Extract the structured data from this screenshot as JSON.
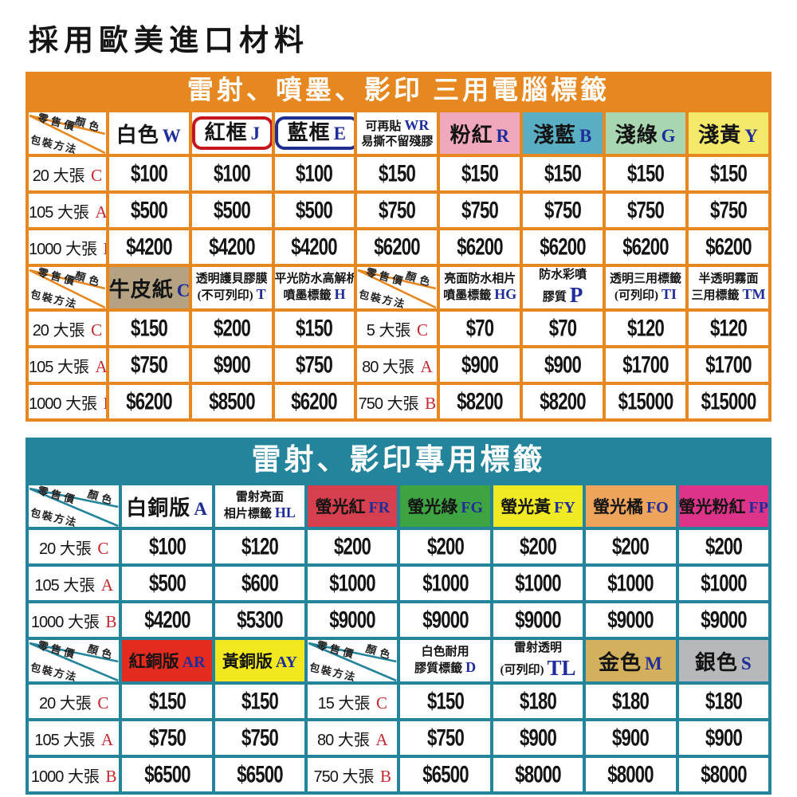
{
  "page_title": "採用歐美進口材料",
  "corner_labels": {
    "retail": "零售價",
    "color": "顏色",
    "packing": "包裝方法"
  },
  "tables": [
    {
      "title": "雷射、噴墨、影印 三用電腦標籤",
      "accent": "#e6871f",
      "rows": [
        {
          "kind": "header",
          "cells": [
            {
              "type": "corner"
            },
            {
              "type": "head",
              "size": "lg",
              "lines": [
                {
                  "t": "白色",
                  "c": "W"
                }
              ]
            },
            {
              "type": "head",
              "size": "lg",
              "frame": "#c4161c",
              "lines": [
                {
                  "t": "紅框",
                  "c": "J"
                }
              ]
            },
            {
              "type": "head",
              "size": "lg",
              "frame": "#202f8d",
              "lines": [
                {
                  "t": "藍框",
                  "c": "E"
                }
              ]
            },
            {
              "type": "head",
              "size": "sm",
              "lines": [
                {
                  "t": "可再貼",
                  "c": "WR"
                },
                {
                  "t": "易撕不留殘膠",
                  "c": ""
                }
              ]
            },
            {
              "type": "head",
              "size": "lg",
              "bg": "#f0a8bd",
              "lines": [
                {
                  "t": "粉紅",
                  "c": "R"
                }
              ]
            },
            {
              "type": "head",
              "size": "lg",
              "bg": "#5aaec3",
              "lines": [
                {
                  "t": "淺藍",
                  "c": "B"
                }
              ]
            },
            {
              "type": "head",
              "size": "lg",
              "bg": "#a8d6b1",
              "lines": [
                {
                  "t": "淺綠",
                  "c": "G"
                }
              ]
            },
            {
              "type": "head",
              "size": "lg",
              "bg": "#f4e96b",
              "lines": [
                {
                  "t": "淺黃",
                  "c": "Y"
                }
              ]
            }
          ]
        },
        {
          "kind": "data",
          "cells": [
            {
              "type": "label",
              "qty": "20",
              "unit": "大張",
              "code": "C"
            },
            {
              "type": "price",
              "v": "$100"
            },
            {
              "type": "price",
              "v": "$100"
            },
            {
              "type": "price",
              "v": "$100"
            },
            {
              "type": "price",
              "v": "$150"
            },
            {
              "type": "price",
              "v": "$150"
            },
            {
              "type": "price",
              "v": "$150"
            },
            {
              "type": "price",
              "v": "$150"
            },
            {
              "type": "price",
              "v": "$150"
            }
          ]
        },
        {
          "kind": "data",
          "cells": [
            {
              "type": "label",
              "qty": "105",
              "unit": "大張",
              "code": "A"
            },
            {
              "type": "price",
              "v": "$500"
            },
            {
              "type": "price",
              "v": "$500"
            },
            {
              "type": "price",
              "v": "$500"
            },
            {
              "type": "price",
              "v": "$750"
            },
            {
              "type": "price",
              "v": "$750"
            },
            {
              "type": "price",
              "v": "$750"
            },
            {
              "type": "price",
              "v": "$750"
            },
            {
              "type": "price",
              "v": "$750"
            }
          ]
        },
        {
          "kind": "data",
          "cells": [
            {
              "type": "label",
              "qty": "1000",
              "unit": "大張",
              "code": "B"
            },
            {
              "type": "price",
              "v": "$4200"
            },
            {
              "type": "price",
              "v": "$4200"
            },
            {
              "type": "price",
              "v": "$4200"
            },
            {
              "type": "price",
              "v": "$6200"
            },
            {
              "type": "price",
              "v": "$6200"
            },
            {
              "type": "price",
              "v": "$6200"
            },
            {
              "type": "price",
              "v": "$6200"
            },
            {
              "type": "price",
              "v": "$6200"
            }
          ]
        },
        {
          "kind": "header",
          "cells": [
            {
              "type": "corner"
            },
            {
              "type": "head",
              "size": "lg",
              "bg": "#b4a283",
              "lines": [
                {
                  "t": "牛皮紙",
                  "c": "C"
                }
              ]
            },
            {
              "type": "head",
              "size": "sm",
              "lines": [
                {
                  "t": "透明護貝膠膜",
                  "c": ""
                },
                {
                  "t": "(不可列印)",
                  "c": "T"
                }
              ]
            },
            {
              "type": "head",
              "size": "sm",
              "lines": [
                {
                  "t": "平光防水高解析",
                  "c": ""
                },
                {
                  "t": "噴墨標籤",
                  "c": "H"
                }
              ]
            },
            {
              "type": "corner"
            },
            {
              "type": "head",
              "size": "sm",
              "lines": [
                {
                  "t": "亮面防水相片",
                  "c": ""
                },
                {
                  "t": "噴墨標籤",
                  "c": "HG"
                }
              ]
            },
            {
              "type": "head",
              "size": "sm",
              "lines": [
                {
                  "t": "防水彩噴",
                  "c": ""
                },
                {
                  "t": "膠質",
                  "c": "P",
                  "big": true
                }
              ]
            },
            {
              "type": "head",
              "size": "sm",
              "lines": [
                {
                  "t": "透明三用標籤",
                  "c": ""
                },
                {
                  "t": "(可列印)",
                  "c": "TI"
                }
              ]
            },
            {
              "type": "head",
              "size": "sm",
              "lines": [
                {
                  "t": "半透明霧面",
                  "c": ""
                },
                {
                  "t": "三用標籤",
                  "c": "TM"
                }
              ]
            }
          ]
        },
        {
          "kind": "data",
          "cells": [
            {
              "type": "label",
              "qty": "20",
              "unit": "大張",
              "code": "C"
            },
            {
              "type": "price",
              "v": "$150"
            },
            {
              "type": "price",
              "v": "$200"
            },
            {
              "type": "price",
              "v": "$150"
            },
            {
              "type": "label",
              "qty": "5",
              "unit": "大張",
              "code": "C"
            },
            {
              "type": "price",
              "v": "$70"
            },
            {
              "type": "price",
              "v": "$70"
            },
            {
              "type": "price",
              "v": "$120"
            },
            {
              "type": "price",
              "v": "$120"
            }
          ]
        },
        {
          "kind": "data",
          "cells": [
            {
              "type": "label",
              "qty": "105",
              "unit": "大張",
              "code": "A"
            },
            {
              "type": "price",
              "v": "$750"
            },
            {
              "type": "price",
              "v": "$900"
            },
            {
              "type": "price",
              "v": "$750"
            },
            {
              "type": "label",
              "qty": "80",
              "unit": "大張",
              "code": "A"
            },
            {
              "type": "price",
              "v": "$900"
            },
            {
              "type": "price",
              "v": "$900"
            },
            {
              "type": "price",
              "v": "$1700"
            },
            {
              "type": "price",
              "v": "$1700"
            }
          ]
        },
        {
          "kind": "data",
          "cells": [
            {
              "type": "label",
              "qty": "1000",
              "unit": "大張",
              "code": "B"
            },
            {
              "type": "price",
              "v": "$6200"
            },
            {
              "type": "price",
              "v": "$8500"
            },
            {
              "type": "price",
              "v": "$6200"
            },
            {
              "type": "label",
              "qty": "750",
              "unit": "大張",
              "code": "B"
            },
            {
              "type": "price",
              "v": "$8200"
            },
            {
              "type": "price",
              "v": "$8200"
            },
            {
              "type": "price",
              "v": "$15000"
            },
            {
              "type": "price",
              "v": "$15000"
            }
          ]
        }
      ]
    },
    {
      "title": "雷射、影印專用標籤",
      "accent": "#24849c",
      "rows": [
        {
          "kind": "header",
          "cells": [
            {
              "type": "corner"
            },
            {
              "type": "head",
              "size": "lg",
              "lines": [
                {
                  "t": "白銅版",
                  "c": "A"
                }
              ]
            },
            {
              "type": "head",
              "size": "sm",
              "lines": [
                {
                  "t": "雷射亮面",
                  "c": ""
                },
                {
                  "t": "相片標籤",
                  "c": "HL"
                }
              ]
            },
            {
              "type": "head",
              "size": "md",
              "bg": "#d6404e",
              "lines": [
                {
                  "t": "螢光紅",
                  "c": "FR"
                }
              ]
            },
            {
              "type": "head",
              "size": "md",
              "bg": "#3ea441",
              "lines": [
                {
                  "t": "螢光綠",
                  "c": "FG"
                }
              ]
            },
            {
              "type": "head",
              "size": "md",
              "bg": "#f0ea25",
              "lines": [
                {
                  "t": "螢光黃",
                  "c": "FY"
                }
              ]
            },
            {
              "type": "head",
              "size": "md",
              "bg": "#efa45c",
              "lines": [
                {
                  "t": "螢光橘",
                  "c": "FO"
                }
              ]
            },
            {
              "type": "head",
              "size": "md",
              "bg": "#db3489",
              "lines": [
                {
                  "t": "螢光粉紅",
                  "c": "FP"
                }
              ]
            }
          ]
        },
        {
          "kind": "data",
          "cells": [
            {
              "type": "label",
              "qty": "20",
              "unit": "大張",
              "code": "C"
            },
            {
              "type": "price",
              "v": "$100"
            },
            {
              "type": "price",
              "v": "$120"
            },
            {
              "type": "price",
              "v": "$200"
            },
            {
              "type": "price",
              "v": "$200"
            },
            {
              "type": "price",
              "v": "$200"
            },
            {
              "type": "price",
              "v": "$200"
            },
            {
              "type": "price",
              "v": "$200"
            }
          ]
        },
        {
          "kind": "data",
          "cells": [
            {
              "type": "label",
              "qty": "105",
              "unit": "大張",
              "code": "A"
            },
            {
              "type": "price",
              "v": "$500"
            },
            {
              "type": "price",
              "v": "$600"
            },
            {
              "type": "price",
              "v": "$1000"
            },
            {
              "type": "price",
              "v": "$1000"
            },
            {
              "type": "price",
              "v": "$1000"
            },
            {
              "type": "price",
              "v": "$1000"
            },
            {
              "type": "price",
              "v": "$1000"
            }
          ]
        },
        {
          "kind": "data",
          "cells": [
            {
              "type": "label",
              "qty": "1000",
              "unit": "大張",
              "code": "B"
            },
            {
              "type": "price",
              "v": "$4200"
            },
            {
              "type": "price",
              "v": "$5300"
            },
            {
              "type": "price",
              "v": "$9000"
            },
            {
              "type": "price",
              "v": "$9000"
            },
            {
              "type": "price",
              "v": "$9000"
            },
            {
              "type": "price",
              "v": "$9000"
            },
            {
              "type": "price",
              "v": "$9000"
            }
          ]
        },
        {
          "kind": "header",
          "cells": [
            {
              "type": "corner"
            },
            {
              "type": "head",
              "size": "md",
              "bg": "#e42b20",
              "lines": [
                {
                  "t": "紅銅版",
                  "c": "AR"
                }
              ]
            },
            {
              "type": "head",
              "size": "md",
              "bg": "#f1e91d",
              "lines": [
                {
                  "t": "黃銅版",
                  "c": "AY"
                }
              ]
            },
            {
              "type": "corner"
            },
            {
              "type": "head",
              "size": "sm",
              "lines": [
                {
                  "t": "白色耐用",
                  "c": ""
                },
                {
                  "t": "膠質標籤",
                  "c": "D"
                }
              ]
            },
            {
              "type": "head",
              "size": "sm",
              "lines": [
                {
                  "t": "雷射透明",
                  "c": ""
                },
                {
                  "t": "(可列印)",
                  "c": "TL",
                  "big": true
                }
              ]
            },
            {
              "type": "head",
              "size": "lg",
              "bg": "#d2b05d",
              "lines": [
                {
                  "t": "金色",
                  "c": "M"
                }
              ]
            },
            {
              "type": "head",
              "size": "lg",
              "bg": "#b7b8ba",
              "lines": [
                {
                  "t": "銀色",
                  "c": "S"
                }
              ]
            }
          ]
        },
        {
          "kind": "data",
          "cells": [
            {
              "type": "label",
              "qty": "20",
              "unit": "大張",
              "code": "C"
            },
            {
              "type": "price",
              "v": "$150"
            },
            {
              "type": "price",
              "v": "$150"
            },
            {
              "type": "label",
              "qty": "15",
              "unit": "大張",
              "code": "C"
            },
            {
              "type": "price",
              "v": "$150"
            },
            {
              "type": "price",
              "v": "$180"
            },
            {
              "type": "price",
              "v": "$180"
            },
            {
              "type": "price",
              "v": "$180"
            }
          ]
        },
        {
          "kind": "data",
          "cells": [
            {
              "type": "label",
              "qty": "105",
              "unit": "大張",
              "code": "A"
            },
            {
              "type": "price",
              "v": "$750"
            },
            {
              "type": "price",
              "v": "$750"
            },
            {
              "type": "label",
              "qty": "80",
              "unit": "大張",
              "code": "A"
            },
            {
              "type": "price",
              "v": "$750"
            },
            {
              "type": "price",
              "v": "$900"
            },
            {
              "type": "price",
              "v": "$900"
            },
            {
              "type": "price",
              "v": "$900"
            }
          ]
        },
        {
          "kind": "data",
          "cells": [
            {
              "type": "label",
              "qty": "1000",
              "unit": "大張",
              "code": "B"
            },
            {
              "type": "price",
              "v": "$6500"
            },
            {
              "type": "price",
              "v": "$6500"
            },
            {
              "type": "label",
              "qty": "750",
              "unit": "大張",
              "code": "B"
            },
            {
              "type": "price",
              "v": "$6500"
            },
            {
              "type": "price",
              "v": "$8000"
            },
            {
              "type": "price",
              "v": "$8000"
            },
            {
              "type": "price",
              "v": "$8000"
            }
          ]
        }
      ]
    }
  ]
}
